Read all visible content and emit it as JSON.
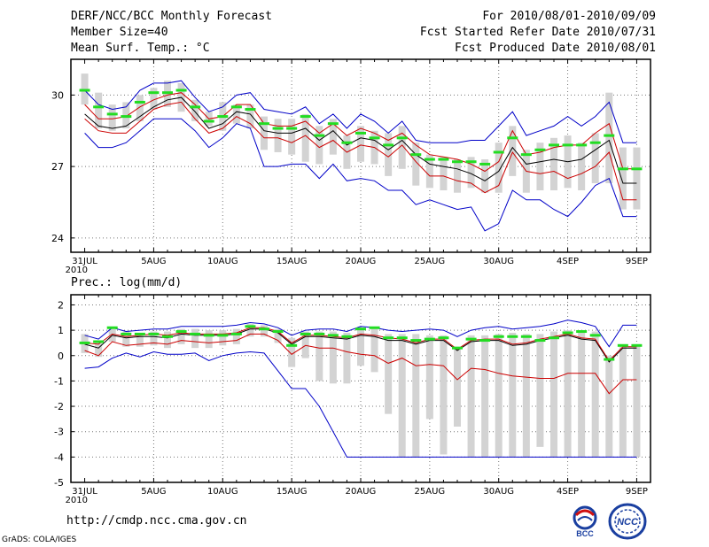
{
  "header": {
    "title": "DERF/NCC/BCC Monthly Forecast",
    "member_size": "Member Size=40",
    "variable": "Mean Surf. Temp.: °C",
    "forecast_period": "For 2010/08/01-2010/09/09",
    "started_refer": "Fcst Started Refer Date 2010/07/31",
    "produced": "Fcst Produced Date 2010/08/01"
  },
  "footer": {
    "url": "http://cmdp.ncc.cma.gov.cn",
    "grads": "GrADS: COLA/IGES",
    "logo_bcc": "BCC",
    "logo_ncc": "NCC"
  },
  "colors": {
    "ensemble_bar": "#d3d3d3",
    "mean_line": "#000000",
    "spread_line": "#cc0000",
    "extreme_line": "#0000c8",
    "median_tick": "#22dd22",
    "grid": "#777777"
  },
  "chart_data": [
    {
      "type": "line",
      "title": "Mean Surf. Temp.: °C",
      "xlabel": "",
      "ylabel": "",
      "ylim": [
        23.4,
        31.5
      ],
      "yticks": [
        24,
        27,
        30
      ],
      "x": [
        1,
        2,
        3,
        4,
        5,
        6,
        7,
        8,
        9,
        10,
        11,
        12,
        13,
        14,
        15,
        16,
        17,
        18,
        19,
        20,
        21,
        22,
        23,
        24,
        25,
        26,
        27,
        28,
        29,
        30,
        31,
        32,
        33,
        34,
        35,
        36,
        37,
        38,
        39,
        40,
        41
      ],
      "xtick_labels": [
        "31JUL\n2010",
        "5AUG",
        "10AUG",
        "15AUG",
        "20AUG",
        "25AUG",
        "30AUG",
        "4SEP",
        "9SEP"
      ],
      "xtick_positions": [
        1,
        6,
        11,
        16,
        21,
        26,
        31,
        36,
        41
      ],
      "grid": true,
      "series": [
        {
          "name": "max",
          "values": [
            28.4,
            27.8,
            27.8,
            28.0,
            28.5,
            29.0,
            29.0,
            29.0,
            28.5,
            27.8,
            28.2,
            28.8,
            28.6,
            27.0,
            27.0,
            27.1,
            27.1,
            26.5,
            27.1,
            26.4,
            26.5,
            26.4,
            26.0,
            26.0,
            25.4,
            25.6,
            25.4,
            25.2,
            25.3,
            24.3,
            24.6,
            26.0,
            25.6,
            25.6,
            25.2,
            24.9,
            25.5,
            26.2,
            26.5,
            24.9,
            24.9
          ]
        },
        {
          "name": "lower_spread",
          "values": [
            29.0,
            28.5,
            28.4,
            28.4,
            28.9,
            29.4,
            29.6,
            29.7,
            29.0,
            28.4,
            28.6,
            29.1,
            28.8,
            28.2,
            28.2,
            28.0,
            28.3,
            27.8,
            28.1,
            27.6,
            27.9,
            27.8,
            27.4,
            27.9,
            27.2,
            26.6,
            26.6,
            26.4,
            26.3,
            25.9,
            26.2,
            27.6,
            26.8,
            26.7,
            26.8,
            26.5,
            26.7,
            27.0,
            27.6,
            25.6,
            25.6
          ]
        },
        {
          "name": "mean",
          "values": [
            29.2,
            28.7,
            28.6,
            28.7,
            29.1,
            29.5,
            29.8,
            29.9,
            29.3,
            28.6,
            28.8,
            29.3,
            29.2,
            28.5,
            28.4,
            28.4,
            28.6,
            28.1,
            28.5,
            27.9,
            28.2,
            28.1,
            27.7,
            28.1,
            27.5,
            27.1,
            27.0,
            26.9,
            26.7,
            26.4,
            26.8,
            27.8,
            27.1,
            27.2,
            27.3,
            27.2,
            27.3,
            27.7,
            28.1,
            26.3,
            26.3
          ]
        },
        {
          "name": "upper_spread",
          "values": [
            29.6,
            29.0,
            29.0,
            29.1,
            29.5,
            29.8,
            30.0,
            30.1,
            29.6,
            29.0,
            29.1,
            29.6,
            29.6,
            28.8,
            28.7,
            28.7,
            28.9,
            28.4,
            28.8,
            28.3,
            28.6,
            28.4,
            28.1,
            28.4,
            27.9,
            27.5,
            27.4,
            27.3,
            27.1,
            26.8,
            27.2,
            28.5,
            27.5,
            27.6,
            27.8,
            27.9,
            27.9,
            28.4,
            28.8,
            26.9,
            26.9
          ]
        },
        {
          "name": "min",
          "values": [
            30.2,
            29.6,
            29.4,
            29.5,
            30.2,
            30.5,
            30.5,
            30.6,
            29.9,
            29.3,
            29.5,
            30.0,
            30.1,
            29.4,
            29.3,
            29.2,
            29.5,
            28.8,
            29.2,
            28.6,
            29.2,
            28.9,
            28.4,
            28.9,
            28.1,
            28.0,
            28.0,
            28.0,
            28.1,
            28.1,
            28.7,
            29.3,
            28.3,
            28.5,
            28.7,
            29.1,
            28.7,
            29.1,
            29.7,
            28.0,
            28.0
          ]
        }
      ],
      "bars": {
        "low": [
          29.6,
          28.6,
          28.5,
          28.6,
          28.9,
          29.4,
          29.5,
          29.3,
          28.9,
          28.7,
          28.5,
          28.8,
          28.6,
          27.7,
          27.6,
          27.5,
          27.2,
          27.1,
          27.5,
          26.9,
          27.2,
          27.1,
          26.6,
          26.9,
          26.2,
          26.1,
          26.0,
          25.9,
          26.1,
          25.9,
          25.9,
          26.6,
          25.9,
          26.0,
          26.0,
          26.1,
          26.0,
          26.3,
          26.3,
          25.2,
          25.2
        ],
        "high": [
          30.9,
          30.1,
          29.6,
          29.7,
          30.0,
          30.3,
          30.6,
          30.5,
          29.8,
          29.3,
          29.7,
          29.6,
          29.6,
          29.1,
          29.0,
          29.0,
          29.2,
          28.7,
          29.0,
          28.3,
          28.7,
          28.5,
          28.4,
          28.7,
          28.0,
          27.5,
          27.4,
          27.3,
          27.4,
          27.3,
          28.0,
          28.7,
          27.7,
          28.0,
          28.2,
          28.3,
          28.0,
          28.4,
          30.1,
          27.8,
          27.8
        ]
      },
      "median": [
        30.2,
        29.5,
        29.2,
        29.1,
        29.7,
        30.1,
        30.1,
        30.2,
        29.5,
        28.9,
        29.1,
        29.5,
        29.4,
        28.8,
        28.6,
        28.6,
        29.1,
        28.3,
        28.8,
        28.0,
        28.4,
        28.2,
        27.9,
        28.2,
        27.5,
        27.3,
        27.3,
        27.2,
        27.2,
        27.1,
        27.6,
        28.2,
        27.5,
        27.7,
        27.9,
        27.9,
        27.9,
        28.0,
        28.3,
        26.9,
        26.9
      ]
    },
    {
      "type": "line",
      "title": "Prec.: log(mm/d)",
      "xlabel": "",
      "ylabel": "",
      "ylim": [
        -5,
        2.4
      ],
      "yticks": [
        -5,
        -4,
        -3,
        -2,
        -1,
        0,
        1,
        2
      ],
      "x": [
        1,
        2,
        3,
        4,
        5,
        6,
        7,
        8,
        9,
        10,
        11,
        12,
        13,
        14,
        15,
        16,
        17,
        18,
        19,
        20,
        21,
        22,
        23,
        24,
        25,
        26,
        27,
        28,
        29,
        30,
        31,
        32,
        33,
        34,
        35,
        36,
        37,
        38,
        39,
        40,
        41
      ],
      "xtick_labels": [
        "31JUL\n2010",
        "5AUG",
        "10AUG",
        "15AUG",
        "20AUG",
        "25AUG",
        "30AUG",
        "4SEP",
        "9SEP"
      ],
      "xtick_positions": [
        1,
        6,
        11,
        16,
        21,
        26,
        31,
        36,
        41
      ],
      "grid": true,
      "series": [
        {
          "name": "max",
          "values": [
            -0.5,
            -0.45,
            -0.1,
            0.1,
            -0.05,
            0.15,
            0.05,
            0.05,
            0.1,
            -0.2,
            0.0,
            0.1,
            0.15,
            0.1,
            -0.6,
            -1.3,
            -1.3,
            -2.0,
            -3.0,
            -4.0,
            -4.0,
            -4.0,
            -4.0,
            -4.0,
            -4.0,
            -4.0,
            -4.0,
            -4.0,
            -4.0,
            -4.0,
            -4.0,
            -4.0,
            -4.0,
            -4.0,
            -4.0,
            -4.0,
            -4.0,
            -4.0,
            -4.0,
            -4.0,
            -4.0
          ]
        },
        {
          "name": "lower_spread",
          "values": [
            0.2,
            0.0,
            0.55,
            0.4,
            0.45,
            0.5,
            0.45,
            0.6,
            0.55,
            0.5,
            0.55,
            0.6,
            0.85,
            0.85,
            0.6,
            0.05,
            0.4,
            0.3,
            0.3,
            0.15,
            0.05,
            0.0,
            -0.3,
            -0.1,
            -0.4,
            -0.35,
            -0.4,
            -0.95,
            -0.5,
            -0.55,
            -0.7,
            -0.8,
            -0.85,
            -0.9,
            -0.9,
            -0.7,
            -0.7,
            -0.7,
            -1.5,
            -0.95,
            -0.95
          ]
        },
        {
          "name": "mean",
          "values": [
            0.45,
            0.3,
            0.8,
            0.7,
            0.75,
            0.75,
            0.7,
            0.85,
            0.8,
            0.8,
            0.8,
            0.85,
            1.05,
            1.05,
            0.9,
            0.45,
            0.75,
            0.75,
            0.7,
            0.65,
            0.8,
            0.75,
            0.6,
            0.6,
            0.45,
            0.6,
            0.6,
            0.2,
            0.55,
            0.6,
            0.6,
            0.4,
            0.45,
            0.6,
            0.7,
            0.8,
            0.65,
            0.6,
            -0.25,
            0.3,
            0.3
          ]
        },
        {
          "name": "upper_spread",
          "values": [
            0.5,
            0.45,
            0.85,
            0.75,
            0.8,
            0.85,
            0.8,
            0.9,
            0.85,
            0.85,
            0.85,
            0.9,
            1.1,
            1.1,
            0.95,
            0.5,
            0.8,
            0.8,
            0.75,
            0.7,
            0.85,
            0.8,
            0.7,
            0.65,
            0.5,
            0.65,
            0.65,
            0.25,
            0.6,
            0.65,
            0.65,
            0.45,
            0.5,
            0.65,
            0.75,
            0.85,
            0.7,
            0.65,
            -0.2,
            0.35,
            0.35
          ]
        },
        {
          "name": "min",
          "values": [
            0.8,
            0.65,
            1.1,
            0.95,
            1.0,
            1.05,
            1.05,
            1.15,
            1.15,
            1.15,
            1.15,
            1.2,
            1.3,
            1.25,
            1.1,
            0.8,
            1.0,
            1.05,
            1.05,
            0.95,
            1.15,
            1.1,
            1.0,
            0.95,
            1.0,
            1.05,
            1.0,
            0.75,
            1.0,
            1.1,
            1.15,
            1.05,
            1.1,
            1.15,
            1.25,
            1.4,
            1.3,
            1.15,
            0.35,
            1.2,
            1.2
          ]
        }
      ],
      "bars": {
        "low": [
          0.1,
          -0.05,
          0.55,
          0.35,
          0.35,
          0.4,
          0.3,
          0.45,
          0.3,
          0.3,
          0.4,
          0.45,
          0.75,
          0.75,
          0.5,
          -0.45,
          -0.1,
          -1.0,
          -1.1,
          -1.1,
          -0.4,
          -0.65,
          -2.3,
          -4.0,
          -4.0,
          -2.5,
          -3.9,
          -2.8,
          -4.0,
          -4.0,
          -4.0,
          -4.0,
          -4.0,
          -3.6,
          -4.0,
          -4.0,
          -4.0,
          -4.0,
          -4.0,
          -4.0,
          -4.0
        ],
        "high": [
          0.85,
          0.5,
          1.05,
          0.95,
          0.9,
          0.95,
          0.95,
          1.05,
          1.05,
          1.0,
          1.0,
          1.05,
          1.25,
          1.2,
          1.05,
          0.7,
          0.95,
          0.95,
          0.95,
          0.9,
          1.05,
          1.05,
          0.85,
          0.85,
          0.85,
          0.8,
          0.8,
          0.35,
          0.8,
          0.8,
          0.85,
          0.9,
          0.85,
          0.85,
          0.95,
          1.0,
          1.0,
          0.95,
          0.0,
          0.45,
          0.45
        ]
      },
      "median": [
        0.5,
        0.55,
        1.1,
        0.85,
        0.85,
        0.85,
        0.75,
        0.95,
        0.85,
        0.8,
        0.8,
        0.85,
        1.15,
        1.05,
        0.95,
        0.4,
        0.85,
        0.85,
        0.8,
        0.75,
        1.05,
        1.1,
        0.7,
        0.7,
        0.6,
        0.65,
        0.7,
        0.3,
        0.65,
        0.6,
        0.75,
        0.75,
        0.75,
        0.6,
        0.7,
        0.9,
        0.95,
        0.8,
        -0.15,
        0.4,
        0.4
      ]
    }
  ]
}
